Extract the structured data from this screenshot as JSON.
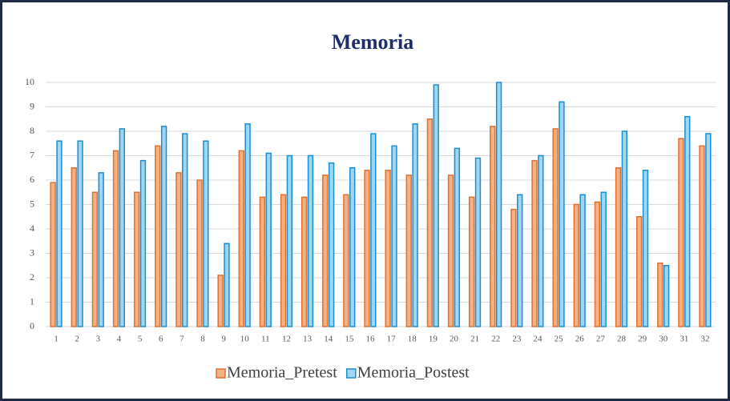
{
  "chart_data": {
    "type": "bar",
    "title": "Memoria",
    "categories": [
      "1",
      "2",
      "3",
      "4",
      "5",
      "6",
      "7",
      "8",
      "9",
      "10",
      "11",
      "12",
      "13",
      "14",
      "15",
      "16",
      "17",
      "18",
      "19",
      "20",
      "21",
      "22",
      "23",
      "24",
      "25",
      "26",
      "27",
      "28",
      "29",
      "30",
      "31",
      "32"
    ],
    "series": [
      {
        "name": "Memoria_Pretest",
        "color": "#f4b183",
        "values": [
          5.9,
          6.5,
          5.5,
          7.2,
          5.5,
          7.4,
          6.3,
          6.0,
          2.1,
          7.2,
          5.3,
          5.4,
          5.3,
          6.2,
          5.4,
          6.4,
          6.4,
          6.2,
          8.5,
          6.2,
          5.3,
          8.2,
          4.8,
          6.8,
          8.1,
          5.0,
          5.1,
          6.5,
          4.5,
          2.6,
          7.7,
          7.4
        ]
      },
      {
        "name": "Memoria_Postest",
        "color": "#9fd7f3",
        "values": [
          7.6,
          7.6,
          6.3,
          8.1,
          6.8,
          8.2,
          7.9,
          7.6,
          3.4,
          8.3,
          7.1,
          7.0,
          7.0,
          6.7,
          6.5,
          7.9,
          7.4,
          8.3,
          9.9,
          7.3,
          6.9,
          10.0,
          5.4,
          7.0,
          9.2,
          5.4,
          5.5,
          8.0,
          6.4,
          2.5,
          8.6,
          7.9
        ]
      }
    ],
    "ylim": [
      0,
      10
    ],
    "yticks": [
      0,
      1,
      2,
      3,
      4,
      5,
      6,
      7,
      8,
      9,
      10
    ],
    "grid": true,
    "legend": "bottom"
  }
}
